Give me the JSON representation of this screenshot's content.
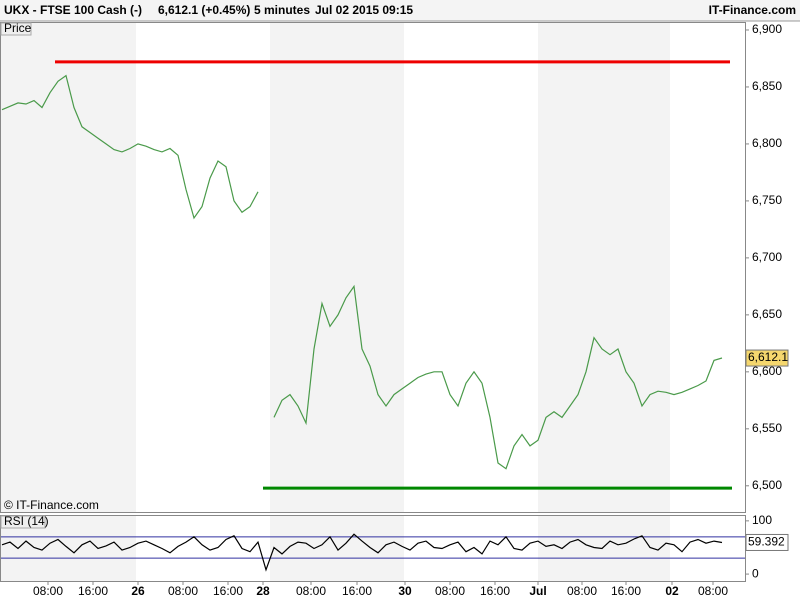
{
  "header": {
    "instrument": "UKX - FTSE 100 Cash (-)",
    "quote": "6,612.1 (+0.45%)",
    "interval": "5 minutes",
    "timestamp": "Jul 02 2015 09:15",
    "brand": "IT-Finance.com"
  },
  "chart_data": [
    {
      "type": "line",
      "panel_label": "Price",
      "watermark": "© IT-Finance.com",
      "x_labels": [
        "08:00",
        "16:00",
        "26",
        "08:00",
        "16:00",
        "28",
        "08:00",
        "16:00",
        "30",
        "08:00",
        "16:00",
        "Jul",
        "08:00",
        "16:00",
        "02",
        "08:00"
      ],
      "series": [
        {
          "color": "#4a9a4a",
          "values": [
            6830,
            6833,
            6836,
            6835,
            6838,
            6832,
            6845,
            6855,
            6860,
            6832,
            6815,
            6810,
            6805,
            6800,
            6795,
            6793,
            6796,
            6800,
            6798,
            6795,
            6793,
            6796,
            6790,
            6760,
            6735,
            6745,
            6770,
            6785,
            6780,
            6750,
            6740,
            6745,
            6758,
            null,
            6560,
            6575,
            6580,
            6570,
            6555,
            6620,
            6660,
            6640,
            6650,
            6665,
            6675,
            6620,
            6605,
            6580,
            6570,
            6580,
            6585,
            6590,
            6595,
            6598,
            6600,
            6600,
            6580,
            6570,
            6590,
            6600,
            6590,
            6560,
            6520,
            6515,
            6535,
            6545,
            6535,
            6540,
            6560,
            6565,
            6560,
            6570,
            6580,
            6600,
            6630,
            6620,
            6615,
            6620,
            6600,
            6590,
            6570,
            6580,
            6583,
            6582,
            6580,
            6582,
            6585,
            6588,
            6592,
            6610,
            6612.1
          ],
          "last_value_label": "6,612.1"
        }
      ],
      "hlines": [
        {
          "value": 6872,
          "color": "#ee0000"
        },
        {
          "value": 6498,
          "color": "#008800"
        }
      ],
      "ylim": [
        6477,
        6907
      ],
      "yticks": [
        {
          "value": 6500,
          "label": "6,500"
        },
        {
          "value": 6550,
          "label": "6,550"
        },
        {
          "value": 6600,
          "label": "6,600"
        },
        {
          "value": 6650,
          "label": "6,650"
        },
        {
          "value": 6700,
          "label": "6,700"
        },
        {
          "value": 6750,
          "label": "6,750"
        },
        {
          "value": 6800,
          "label": "6,800"
        },
        {
          "value": 6850,
          "label": "6,850"
        },
        {
          "value": 6900,
          "label": "6,900"
        }
      ]
    },
    {
      "type": "line",
      "panel_label": "RSI (14)",
      "series": [
        {
          "color": "#000000",
          "values": [
            55,
            60,
            48,
            62,
            50,
            45,
            58,
            65,
            52,
            40,
            55,
            62,
            48,
            53,
            60,
            45,
            50,
            58,
            62,
            55,
            48,
            40,
            52,
            60,
            70,
            55,
            45,
            50,
            65,
            72,
            48,
            42,
            60,
            8,
            50,
            38,
            52,
            60,
            58,
            48,
            55,
            70,
            45,
            58,
            75,
            62,
            50,
            40,
            55,
            60,
            52,
            45,
            58,
            62,
            50,
            48,
            55,
            60,
            42,
            50,
            38,
            62,
            55,
            70,
            48,
            45,
            58,
            62,
            52,
            55,
            48,
            60,
            65,
            55,
            50,
            48,
            62,
            55,
            58,
            66,
            72,
            50,
            45,
            58,
            55,
            42,
            60,
            65,
            58,
            62,
            59.392
          ],
          "last_value_label": "59.392"
        }
      ],
      "levels": [
        30,
        70
      ],
      "level_color": "#3030a0",
      "ylim": [
        -13,
        111
      ],
      "yticks": [
        0,
        100
      ]
    }
  ]
}
